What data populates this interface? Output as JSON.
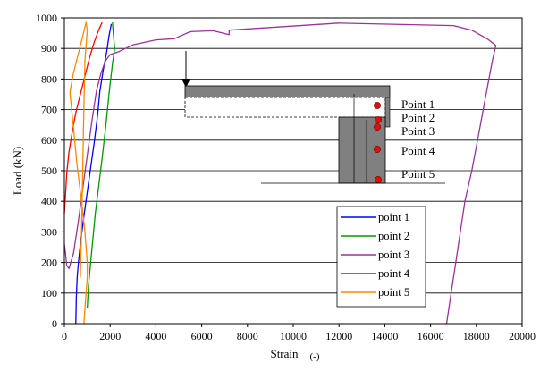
{
  "chart_data": {
    "type": "line",
    "xlabel": "Strain",
    "xunit": "(-)",
    "ylabel": "Load (kN)",
    "xlim": [
      0,
      20000
    ],
    "ylim": [
      0,
      1000
    ],
    "xticks": [
      "0",
      "2000",
      "4000",
      "6000",
      "8000",
      "10000",
      "12000",
      "14000",
      "16000",
      "18000",
      "20000"
    ],
    "yticks": [
      "0",
      "100",
      "200",
      "300",
      "400",
      "500",
      "600",
      "700",
      "800",
      "900",
      "1000"
    ],
    "grid": "horizontal",
    "legend_position": "bottom-right",
    "series": [
      {
        "name": "point 1",
        "color": "#0000ff",
        "points": [
          [
            500,
            0
          ],
          [
            520,
            80
          ],
          [
            560,
            150
          ],
          [
            600,
            190
          ],
          [
            700,
            260
          ],
          [
            850,
            350
          ],
          [
            1000,
            430
          ],
          [
            1150,
            510
          ],
          [
            1300,
            590
          ],
          [
            1450,
            680
          ],
          [
            1550,
            760
          ],
          [
            1700,
            830
          ],
          [
            1850,
            890
          ],
          [
            1950,
            940
          ],
          [
            2050,
            980
          ]
        ]
      },
      {
        "name": "point 2",
        "color": "#009900",
        "points": [
          [
            1000,
            50
          ],
          [
            1050,
            120
          ],
          [
            1150,
            200
          ],
          [
            1250,
            280
          ],
          [
            1350,
            360
          ],
          [
            1500,
            450
          ],
          [
            1650,
            540
          ],
          [
            1800,
            640
          ],
          [
            1950,
            750
          ],
          [
            2100,
            850
          ],
          [
            2200,
            900
          ],
          [
            2150,
            940
          ],
          [
            2100,
            985
          ]
        ]
      },
      {
        "name": "point 3",
        "color": "#993399",
        "points": [
          [
            16700,
            0
          ],
          [
            16900,
            100
          ],
          [
            17100,
            200
          ],
          [
            17300,
            300
          ],
          [
            17500,
            400
          ],
          [
            17800,
            500
          ],
          [
            18100,
            620
          ],
          [
            18400,
            740
          ],
          [
            18700,
            860
          ],
          [
            18850,
            910
          ],
          [
            18500,
            930
          ],
          [
            17800,
            960
          ],
          [
            17000,
            975
          ],
          [
            12000,
            983
          ],
          [
            7200,
            960
          ],
          [
            7200,
            945
          ],
          [
            6500,
            958
          ],
          [
            5500,
            955
          ],
          [
            5200,
            945
          ],
          [
            4800,
            932
          ],
          [
            4000,
            928
          ],
          [
            3000,
            912
          ],
          [
            2400,
            890
          ],
          [
            2000,
            880
          ],
          [
            1800,
            860
          ],
          [
            1600,
            820
          ],
          [
            1400,
            760
          ],
          [
            1200,
            660
          ],
          [
            1000,
            550
          ],
          [
            800,
            440
          ],
          [
            600,
            330
          ],
          [
            400,
            230
          ],
          [
            200,
            180
          ],
          [
            100,
            190
          ],
          [
            50,
            230
          ],
          [
            0,
            260
          ]
        ]
      },
      {
        "name": "point 4",
        "color": "#ff0000",
        "points": [
          [
            0,
            360
          ],
          [
            50,
            420
          ],
          [
            100,
            490
          ],
          [
            200,
            560
          ],
          [
            350,
            630
          ],
          [
            500,
            690
          ],
          [
            700,
            750
          ],
          [
            900,
            810
          ],
          [
            1100,
            870
          ],
          [
            1300,
            920
          ],
          [
            1500,
            960
          ],
          [
            1650,
            985
          ]
        ]
      },
      {
        "name": "point 5",
        "color": "#ff8800",
        "points": [
          [
            850,
            0
          ],
          [
            900,
            50
          ],
          [
            950,
            100
          ],
          [
            1000,
            150
          ],
          [
            1000,
            200
          ],
          [
            900,
            300
          ],
          [
            750,
            400
          ],
          [
            550,
            520
          ],
          [
            400,
            640
          ],
          [
            250,
            750
          ],
          [
            250,
            760
          ],
          [
            400,
            820
          ],
          [
            600,
            880
          ],
          [
            800,
            940
          ],
          [
            950,
            985
          ],
          [
            1000,
            960
          ],
          [
            900,
            860
          ],
          [
            850,
            700
          ],
          [
            800,
            500
          ],
          [
            750,
            300
          ],
          [
            700,
            150
          ]
        ]
      }
    ],
    "inset": {
      "labels": [
        "Point 1",
        "Point 2",
        "Point 3",
        "Point 4",
        "Point 5"
      ]
    }
  }
}
